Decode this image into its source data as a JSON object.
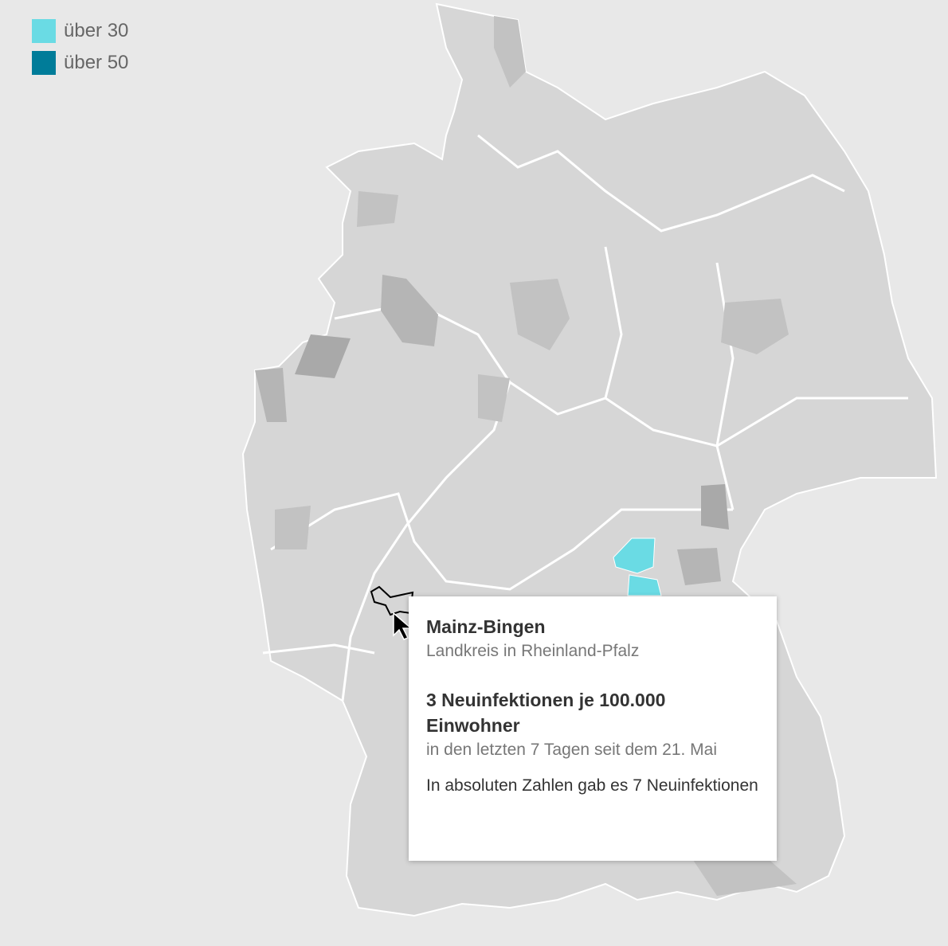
{
  "legend": [
    {
      "label": "über 30",
      "color": "#6adbe4"
    },
    {
      "label": "über 50",
      "color": "#007c99"
    }
  ],
  "map": {
    "base_color": "#d6d6d6",
    "border_color": "#ffffff",
    "elevated_colors": [
      "#c2c2c2",
      "#a9a9a9"
    ],
    "hovered_region_outline": "#000000"
  },
  "tooltip": {
    "name": "Mainz-Bingen",
    "type": "Landkreis in Rheinland-Pfalz",
    "value_line": "3 Neuinfektionen je 100.000 Einwohner",
    "period": "in den letzten 7 Tagen seit dem 21. Mai",
    "absolute": "In absoluten Zahlen gab es 7 Neuinfektionen"
  },
  "cursor": "arrow-cursor-icon"
}
